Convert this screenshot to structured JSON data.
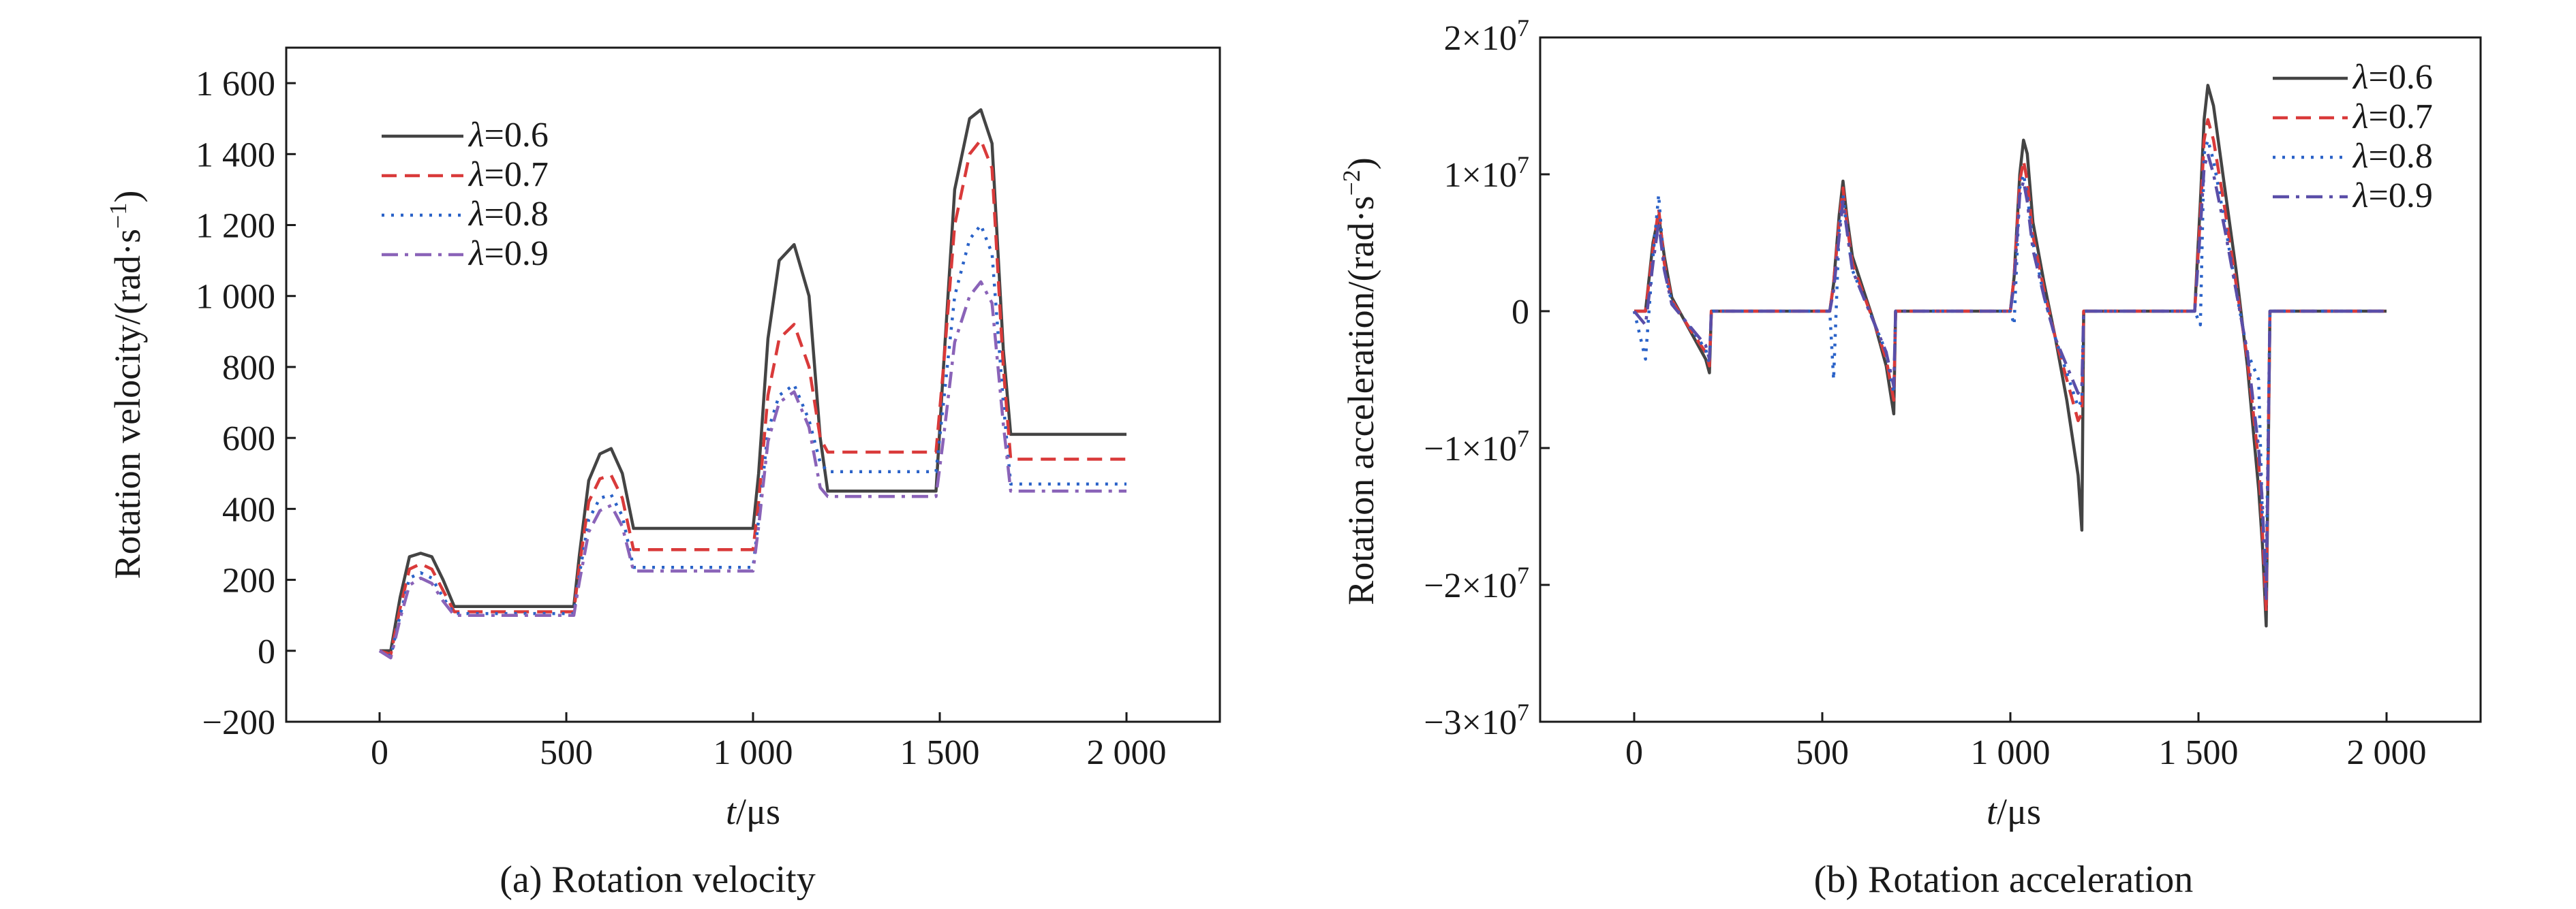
{
  "figure": {
    "panels": [
      {
        "caption": "(a) Rotation velocity",
        "ylabel_main": "Rotation velocity/(rad·s",
        "ylabel_sup": "−1",
        "ylabel_close": ")",
        "xlabel_italic": "t",
        "xlabel_rest": "/μs"
      },
      {
        "caption": "(b) Rotation acceleration",
        "ylabel_main": "Rotation acceleration/(rad·s",
        "ylabel_sup": "−2",
        "ylabel_close": ")",
        "xlabel_italic": "t",
        "xlabel_rest": "/μs"
      }
    ]
  },
  "chart_data": [
    {
      "type": "line",
      "title": "",
      "caption": "(a) Rotation velocity",
      "xlabel": "t/μs",
      "ylabel": "Rotation velocity/(rad·s−1)",
      "xlim": [
        -250,
        2250
      ],
      "ylim": [
        -200,
        1700
      ],
      "x_ticks": [
        0,
        500,
        1000,
        1500,
        2000
      ],
      "x_tick_labels": [
        "0",
        "500",
        "1 000",
        "1 500",
        "2 000"
      ],
      "y_ticks": [
        -200,
        0,
        200,
        400,
        600,
        800,
        1000,
        1200,
        1400,
        1600
      ],
      "y_tick_labels": [
        "−200",
        "0",
        "200",
        "400",
        "600",
        "800",
        "1 000",
        "1 200",
        "1 400",
        "1 600"
      ],
      "grid": false,
      "legend_position": "top-left",
      "series": [
        {
          "name": "λ=0.6",
          "color": "#444444",
          "dash": "solid",
          "x": [
            0,
            30,
            55,
            80,
            110,
            140,
            170,
            200,
            520,
            535,
            560,
            590,
            620,
            650,
            680,
            1000,
            1015,
            1040,
            1070,
            1110,
            1150,
            1180,
            1200,
            1490,
            1510,
            1540,
            1580,
            1610,
            1640,
            1670,
            1690,
            2000
          ],
          "y": [
            0,
            0,
            150,
            265,
            275,
            265,
            200,
            125,
            125,
            270,
            480,
            555,
            570,
            500,
            345,
            345,
            500,
            880,
            1100,
            1145,
            1000,
            600,
            450,
            450,
            800,
            1300,
            1500,
            1525,
            1430,
            850,
            610,
            610
          ]
        },
        {
          "name": "λ=0.7",
          "color": "#d93a3a",
          "dash": "longdash",
          "x": [
            0,
            30,
            55,
            80,
            110,
            140,
            170,
            200,
            520,
            535,
            560,
            590,
            620,
            650,
            680,
            1000,
            1015,
            1040,
            1070,
            1110,
            1150,
            1180,
            1200,
            1490,
            1510,
            1540,
            1580,
            1610,
            1640,
            1670,
            1690,
            2000
          ],
          "y": [
            0,
            -10,
            120,
            230,
            245,
            230,
            170,
            110,
            110,
            240,
            420,
            485,
            495,
            430,
            285,
            285,
            420,
            720,
            880,
            920,
            800,
            600,
            560,
            560,
            800,
            1200,
            1400,
            1440,
            1360,
            800,
            540,
            540
          ]
        },
        {
          "name": "λ=0.8",
          "color": "#2a62c8",
          "dash": "dot",
          "x": [
            0,
            30,
            55,
            80,
            110,
            140,
            170,
            200,
            520,
            535,
            560,
            590,
            620,
            650,
            680,
            1000,
            1015,
            1040,
            1070,
            1110,
            1150,
            1180,
            1200,
            1490,
            1510,
            1540,
            1580,
            1610,
            1640,
            1670,
            1690,
            2000
          ],
          "y": [
            0,
            -15,
            100,
            205,
            220,
            205,
            150,
            105,
            105,
            215,
            370,
            430,
            440,
            380,
            235,
            235,
            370,
            620,
            720,
            750,
            650,
            530,
            505,
            505,
            700,
            1000,
            1160,
            1200,
            1120,
            700,
            470,
            470
          ]
        },
        {
          "name": "λ=0.9",
          "color": "#8a63b8",
          "dash": "dashdot",
          "x": [
            0,
            30,
            55,
            80,
            110,
            140,
            170,
            200,
            520,
            535,
            560,
            590,
            620,
            650,
            680,
            1000,
            1015,
            1040,
            1070,
            1110,
            1150,
            1180,
            1200,
            1490,
            1510,
            1540,
            1580,
            1610,
            1640,
            1670,
            1690,
            2000
          ],
          "y": [
            0,
            -20,
            90,
            185,
            205,
            190,
            140,
            100,
            100,
            195,
            335,
            395,
            410,
            350,
            225,
            225,
            350,
            590,
            700,
            730,
            630,
            460,
            435,
            435,
            600,
            870,
            1000,
            1040,
            980,
            640,
            450,
            450
          ]
        }
      ]
    },
    {
      "type": "line",
      "title": "",
      "caption": "(b) Rotation acceleration",
      "xlabel": "t/μs",
      "ylabel": "Rotation acceleration/(rad·s−2)",
      "xlim": [
        -250,
        2250
      ],
      "ylim": [
        -30000000,
        20000000
      ],
      "x_ticks": [
        0,
        500,
        1000,
        1500,
        2000
      ],
      "x_tick_labels": [
        "0",
        "500",
        "1 000",
        "1 500",
        "2 000"
      ],
      "y_ticks": [
        -30000000,
        -20000000,
        -10000000,
        0,
        10000000,
        20000000
      ],
      "y_tick_labels": [
        {
          "base": "−3×10",
          "exp": "7"
        },
        {
          "base": "−2×10",
          "exp": "7"
        },
        {
          "base": "−1×10",
          "exp": "7"
        },
        {
          "base": "0",
          "exp": ""
        },
        {
          "base": "1×10",
          "exp": "7"
        },
        {
          "base": "2×10",
          "exp": "7"
        }
      ],
      "grid": false,
      "legend_position": "top-right",
      "series": [
        {
          "name": "λ=0.6",
          "color": "#444444",
          "dash": "solid",
          "x": [
            0,
            30,
            50,
            65,
            80,
            100,
            130,
            160,
            190,
            200,
            205,
            520,
            530,
            545,
            555,
            565,
            580,
            610,
            640,
            670,
            690,
            695,
            1000,
            1010,
            1025,
            1035,
            1045,
            1060,
            1090,
            1120,
            1150,
            1180,
            1190,
            1195,
            1490,
            1505,
            1515,
            1525,
            1540,
            1570,
            1600,
            1630,
            1660,
            1670,
            1680,
            1690,
            2000
          ],
          "y": [
            0,
            0,
            5000000,
            7000000,
            4000000,
            1000000,
            -500000,
            -2000000,
            -3500000,
            -4500000,
            0,
            0,
            2000000,
            7000000,
            9500000,
            7000000,
            4000000,
            1500000,
            -1000000,
            -4000000,
            -7500000,
            0,
            0,
            2500000,
            10000000,
            12500000,
            11500000,
            6500000,
            2000000,
            -2000000,
            -6500000,
            -12000000,
            -16000000,
            0,
            0,
            8000000,
            14000000,
            16500000,
            15000000,
            9000000,
            3000000,
            -4000000,
            -13000000,
            -17000000,
            -23000000,
            0,
            0
          ]
        },
        {
          "name": "λ=0.7",
          "color": "#d93a3a",
          "dash": "longdash",
          "x": [
            0,
            30,
            50,
            65,
            80,
            100,
            130,
            160,
            190,
            200,
            205,
            520,
            530,
            545,
            555,
            565,
            580,
            610,
            640,
            670,
            690,
            695,
            1000,
            1010,
            1025,
            1035,
            1045,
            1060,
            1090,
            1120,
            1150,
            1180,
            1190,
            1195,
            1490,
            1505,
            1515,
            1525,
            1540,
            1570,
            1600,
            1630,
            1660,
            1670,
            1680,
            1690,
            2000
          ],
          "y": [
            0,
            0,
            4500000,
            7500000,
            3500000,
            800000,
            -500000,
            -1800000,
            -3000000,
            -4000000,
            0,
            0,
            2000000,
            6500000,
            9000000,
            6500000,
            3500000,
            1200000,
            -1000000,
            -3500000,
            -6500000,
            0,
            0,
            2500000,
            9500000,
            11000000,
            9500000,
            5500000,
            1500000,
            -2000000,
            -5000000,
            -8000000,
            -7500000,
            0,
            0,
            7000000,
            12500000,
            14000000,
            12500000,
            7500000,
            2000000,
            -3500000,
            -11000000,
            -16000000,
            -22000000,
            0,
            0
          ]
        },
        {
          "name": "λ=0.8",
          "color": "#2a62c8",
          "dash": "dot",
          "x": [
            0,
            30,
            50,
            65,
            80,
            100,
            130,
            160,
            190,
            200,
            205,
            520,
            530,
            545,
            555,
            565,
            580,
            610,
            640,
            670,
            690,
            695,
            1000,
            1010,
            1025,
            1035,
            1045,
            1060,
            1090,
            1120,
            1150,
            1180,
            1190,
            1195,
            1490,
            1505,
            1515,
            1525,
            1540,
            1570,
            1600,
            1630,
            1660,
            1670,
            1680,
            1690,
            2000
          ],
          "y": [
            0,
            -3500000,
            4000000,
            8500000,
            3000000,
            600000,
            -500000,
            -1600000,
            -2800000,
            -3800000,
            0,
            0,
            -5000000,
            6000000,
            8500000,
            6000000,
            3000000,
            1000000,
            -1000000,
            -3000000,
            -6000000,
            0,
            0,
            -1000000,
            9000000,
            10000000,
            8500000,
            5000000,
            1000000,
            -2000000,
            -4500000,
            -7000000,
            -6500000,
            0,
            0,
            -1000000,
            11500000,
            12500000,
            11000000,
            6500000,
            1500000,
            -3000000,
            -5000000,
            -15000000,
            -19000000,
            0,
            0
          ]
        },
        {
          "name": "λ=0.9",
          "color": "#5a4ea8",
          "dash": "dashdot",
          "x": [
            0,
            30,
            50,
            65,
            80,
            100,
            130,
            160,
            190,
            200,
            205,
            520,
            530,
            545,
            555,
            565,
            580,
            610,
            640,
            670,
            690,
            695,
            1000,
            1010,
            1025,
            1035,
            1045,
            1060,
            1090,
            1120,
            1150,
            1180,
            1190,
            1195,
            1490,
            1505,
            1515,
            1525,
            1540,
            1570,
            1600,
            1630,
            1660,
            1670,
            1680,
            1690,
            2000
          ],
          "y": [
            0,
            -1000000,
            3500000,
            6500000,
            3000000,
            500000,
            -500000,
            -1500000,
            -2500000,
            -3500000,
            0,
            0,
            1500000,
            5500000,
            8000000,
            6000000,
            3000000,
            1000000,
            -1000000,
            -3000000,
            -5500000,
            0,
            0,
            2000000,
            8500000,
            9500000,
            8000000,
            4500000,
            1000000,
            -2000000,
            -4000000,
            -6000000,
            -5500000,
            0,
            0,
            6000000,
            10500000,
            11500000,
            10000000,
            6000000,
            1500000,
            -3000000,
            -10000000,
            -14000000,
            -21000000,
            0,
            0
          ]
        }
      ]
    }
  ]
}
